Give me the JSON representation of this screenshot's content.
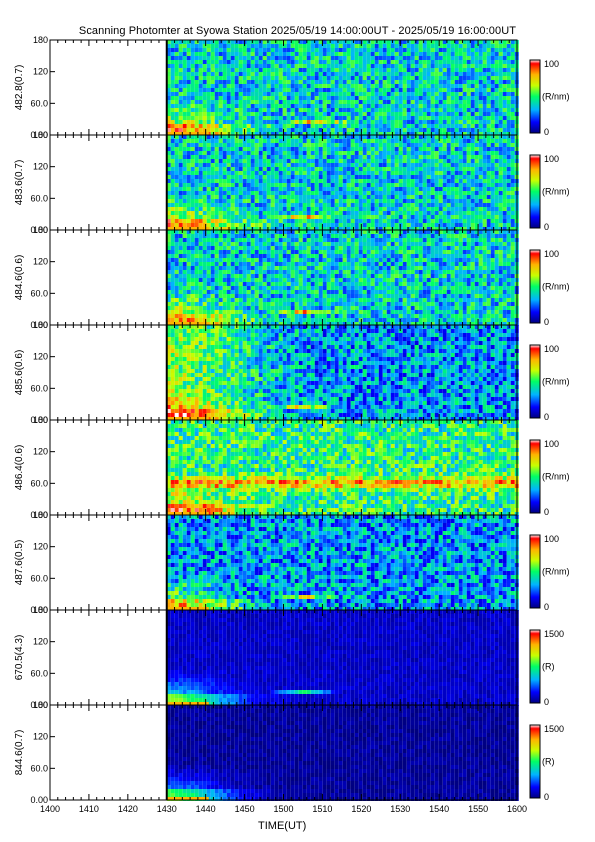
{
  "chart_data": {
    "type": "heatmap",
    "title": "Scanning Photomter at Syowa Station  2025/05/19 14:00:00UT - 2025/05/19 16:00:00UT",
    "xlabel": "TIME(UT)",
    "x_ticks": [
      "1400",
      "1410",
      "1420",
      "1430",
      "1440",
      "1450",
      "1500",
      "1510",
      "1520",
      "1530",
      "1540",
      "1550",
      "1600"
    ],
    "xlim": [
      "1400",
      "1600"
    ],
    "data_start": "1430",
    "y_ticks": [
      "0.00",
      "60.0",
      "120",
      "180"
    ],
    "ylim": [
      0,
      180
    ],
    "colorscale": [
      "#000080",
      "#0000ff",
      "#00b4ff",
      "#00ff64",
      "#c8ff00",
      "#ffb400",
      "#ff0000",
      "#ffffff"
    ],
    "panels": [
      {
        "label": "482.8(0.7)",
        "unit": "(R/nm)",
        "cbar_range": [
          0,
          100
        ],
        "cbar_labels": [
          "100",
          "0"
        ],
        "band_angle": 30,
        "band_time": "1508",
        "level": "medium"
      },
      {
        "label": "483.6(0.7)",
        "unit": "(R/nm)",
        "cbar_range": [
          0,
          100
        ],
        "cbar_labels": [
          "100",
          "0"
        ],
        "band_angle": 30,
        "band_time": "1505",
        "level": "medium"
      },
      {
        "label": "484.6(0.6)",
        "unit": "(R/nm)",
        "cbar_range": [
          0,
          100
        ],
        "cbar_labels": [
          "100",
          "0"
        ],
        "band_angle": 30,
        "band_time": "1505",
        "level": "medium"
      },
      {
        "label": "485.6(0.6)",
        "unit": "(R/nm)",
        "cbar_range": [
          0,
          100
        ],
        "cbar_labels": [
          "100",
          "0"
        ],
        "band_angle": 30,
        "band_time": "1505",
        "level": "low"
      },
      {
        "label": "486.4(0.6)",
        "unit": "(R/nm)",
        "cbar_range": [
          0,
          100
        ],
        "cbar_labels": [
          "100",
          "0"
        ],
        "band_angle": 65,
        "band_time": "",
        "level": "high"
      },
      {
        "label": "487.6(0.5)",
        "unit": "(R/nm)",
        "cbar_range": [
          0,
          100
        ],
        "cbar_labels": [
          "100",
          "0"
        ],
        "band_angle": 30,
        "band_time": "1505",
        "level": "low"
      },
      {
        "label": "670.5(4.3)",
        "unit": "(R)",
        "cbar_range": [
          0,
          1500
        ],
        "cbar_labels": [
          "1500",
          "0"
        ],
        "band_angle": 30,
        "band_time": "1505",
        "level": "dark"
      },
      {
        "label": "844.6(0.7)",
        "unit": "(R)",
        "cbar_range": [
          0,
          1500
        ],
        "cbar_labels": [
          "1500",
          "0"
        ],
        "band_angle": 10,
        "band_time": "",
        "level": "darkest"
      }
    ]
  }
}
